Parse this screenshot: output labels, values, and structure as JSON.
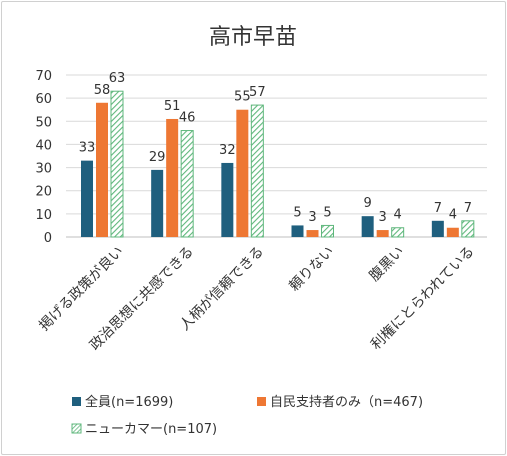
{
  "chart_data": {
    "type": "bar",
    "title": "高市早苗",
    "categories": [
      "掲げる政策が良い",
      "政治思想に共感できる",
      "人柄が信頼できる",
      "頼りない",
      "腹黒い",
      "利権にとらわれている"
    ],
    "series": [
      {
        "name": "全員(n=1699)",
        "values": [
          33,
          29,
          32,
          5,
          9,
          7
        ],
        "labels": [
          "33",
          "29",
          "32",
          "5",
          "9",
          "7"
        ]
      },
      {
        "name": "自民支持者のみ（n=467)",
        "values": [
          58,
          51,
          55,
          3,
          3,
          4
        ],
        "labels": [
          "58",
          "51",
          "55",
          "3",
          "3",
          "4"
        ]
      },
      {
        "name": "ニューカマー(n=107)",
        "values": [
          63,
          46,
          57,
          5,
          4,
          7
        ],
        "labels": [
          "63",
          "46",
          "57",
          "5",
          "4",
          "7"
        ]
      }
    ],
    "yticks": [
      "0",
      "10",
      "20",
      "30",
      "40",
      "50",
      "60",
      "70"
    ],
    "ylim": [
      0,
      70
    ],
    "grid": true,
    "legend": "bottom",
    "colors": [
      "#1f5f7e",
      "#ee7733",
      "#5fb77c"
    ]
  }
}
